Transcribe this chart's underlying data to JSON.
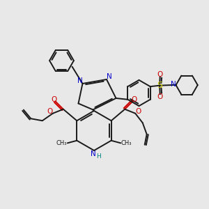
{
  "background_color": "#e8e8e8",
  "bond_color": "#1a1a1a",
  "nitrogen_color": "#0000cc",
  "oxygen_color": "#cc0000",
  "sulfur_color": "#cccc00",
  "nh_color": "#008080",
  "lw": 1.4,
  "xlim": [
    0,
    10
  ],
  "ylim": [
    0,
    10
  ]
}
